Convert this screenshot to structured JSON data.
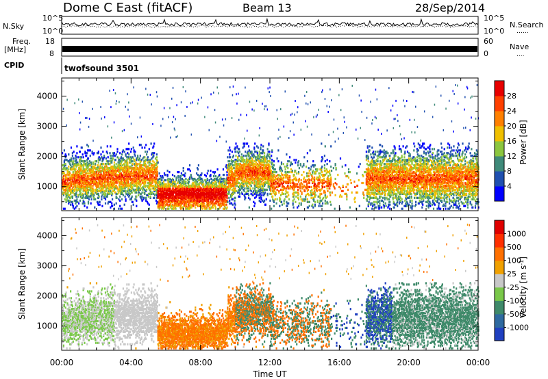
{
  "header": {
    "station": "Dome C East (fitACF)",
    "beam": "Beam 13",
    "date": "28/Sep/2014"
  },
  "strip_labels": {
    "nsky": "N.Sky",
    "nsearch": "N.Search",
    "nsearch_dots": "……",
    "freq_line1": "Freq.",
    "freq_line2": "[MHz]",
    "nave": "Nave",
    "nave_dots": "....",
    "cpid": "CPID",
    "cpid_value": "twofsound 3501"
  },
  "strip_ticks": {
    "noise_left": [
      "10^5",
      "10^0"
    ],
    "noise_right": [
      "10^5",
      "10^0"
    ],
    "freq_left": [
      "18",
      "8"
    ],
    "freq_right": [
      "60",
      "0"
    ]
  },
  "chart_data": [
    {
      "type": "heatmap",
      "name": "power",
      "ylabel": "Slant Range [km]",
      "xlabel": "",
      "yticks": [
        "1000",
        "2000",
        "3000",
        "4000"
      ],
      "ylim": [
        200,
        4600
      ],
      "xlim_hours": [
        0,
        24
      ],
      "colorbar": {
        "label": "Power [dB]",
        "ticks": [
          "4",
          "8",
          "12",
          "16",
          "20",
          "24",
          "28"
        ],
        "colors": [
          "#0000ff",
          "#2050b0",
          "#3f8a7a",
          "#8cc63f",
          "#f0c000",
          "#ff8000",
          "#ff4000",
          "#e80000"
        ]
      }
    },
    {
      "type": "heatmap",
      "name": "velocity",
      "ylabel": "Slant Range [km]",
      "xlabel": "Time UT",
      "yticks": [
        "1000",
        "2000",
        "3000",
        "4000"
      ],
      "ylim": [
        200,
        4600
      ],
      "xlim_hours": [
        0,
        24
      ],
      "xticks": [
        "00:00",
        "04:00",
        "08:00",
        "12:00",
        "16:00",
        "20:00",
        "00:00"
      ],
      "colorbar": {
        "label": "Velocity [m s",
        "label_sup": "-1",
        "label_end": "]",
        "ticks": [
          "1000",
          "500",
          "100",
          "25",
          "-25",
          "-100",
          "-500",
          "-1000"
        ],
        "colors": [
          "#2040c0",
          "#2f6aa0",
          "#3f8a6a",
          "#7ac84a",
          "#c8c8c8",
          "#f0a000",
          "#ff7000",
          "#ff3000",
          "#e00000"
        ]
      }
    }
  ]
}
